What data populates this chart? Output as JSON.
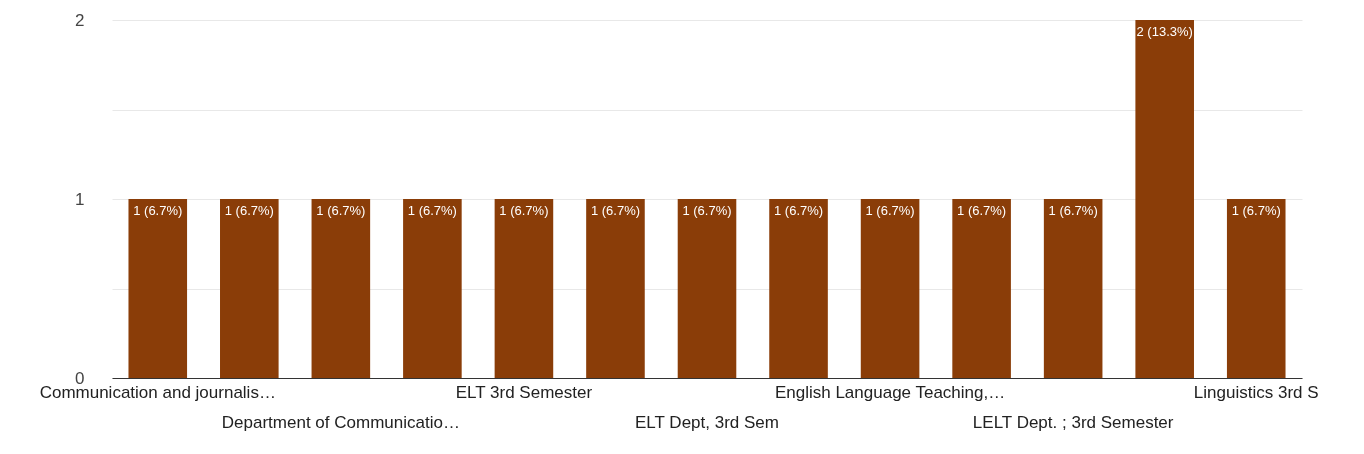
{
  "chart_data": {
    "type": "bar",
    "categories": [
      "Communication and journalis…",
      null,
      "Department of Communicatio…",
      null,
      "ELT 3rd Semester",
      null,
      "ELT Dept, 3rd Sem",
      null,
      "English Language Teaching,…",
      null,
      "LELT Dept. ; 3rd Semester",
      null,
      "Linguistics 3rd S"
    ],
    "values": [
      1,
      1,
      1,
      1,
      1,
      1,
      1,
      1,
      1,
      1,
      1,
      2,
      1
    ],
    "value_labels": [
      "1 (6.7%)",
      "1 (6.7%)",
      "1 (6.7%)",
      "1 (6.7%)",
      "1 (6.7%)",
      "1 (6.7%)",
      "1 (6.7%)",
      "1 (6.7%)",
      "1 (6.7%)",
      "1 (6.7%)",
      "1 (6.7%)",
      "2 (13.3%)",
      "1 (6.7%)"
    ],
    "color": "#8a3d08",
    "ylim": [
      0,
      2
    ],
    "yticks": [
      0,
      {
        "value": 0.5,
        "label": null
      },
      1,
      {
        "value": 1.5,
        "label": null
      },
      2
    ],
    "grid": "y"
  }
}
